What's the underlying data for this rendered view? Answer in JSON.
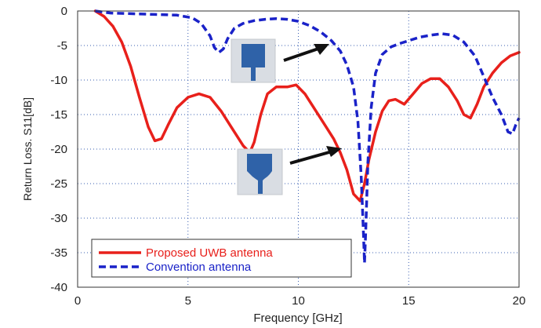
{
  "chart_data": {
    "type": "line",
    "title": "",
    "xlabel": "Frequency [GHz]",
    "ylabel": "Return Loss. S11[dB]",
    "xlim": [
      0,
      20
    ],
    "ylim": [
      -40,
      0
    ],
    "xticks": [
      "0",
      "5",
      "10",
      "15",
      "20"
    ],
    "yticks": [
      "0",
      "-5",
      "-10",
      "-15",
      "-20",
      "-25",
      "-30",
      "-35",
      "-40"
    ],
    "grid": true,
    "legend_position": "bottom-left",
    "series": [
      {
        "name": "Proposed UWB antenna",
        "color": "#e8201b",
        "style": "solid",
        "x": [
          0.8,
          1.2,
          1.6,
          2.0,
          2.4,
          2.8,
          3.2,
          3.5,
          3.8,
          4.1,
          4.5,
          5.0,
          5.5,
          6.0,
          6.5,
          7.0,
          7.5,
          7.8,
          8.0,
          8.3,
          8.6,
          9.0,
          9.5,
          9.9,
          10.3,
          10.8,
          11.2,
          11.6,
          11.9,
          12.2,
          12.5,
          12.8,
          13.0,
          13.2,
          13.5,
          13.8,
          14.1,
          14.4,
          14.8,
          15.2,
          15.6,
          16.0,
          16.4,
          16.8,
          17.2,
          17.5,
          17.8,
          18.1,
          18.4,
          18.8,
          19.2,
          19.6,
          20.0
        ],
        "y": [
          0.0,
          -0.8,
          -2.2,
          -4.5,
          -8.0,
          -12.5,
          -16.8,
          -18.8,
          -18.5,
          -16.5,
          -14.0,
          -12.5,
          -12.0,
          -12.5,
          -14.5,
          -17.0,
          -19.5,
          -20.5,
          -19.0,
          -15.0,
          -12.0,
          -11.0,
          -11.0,
          -10.7,
          -12.0,
          -14.5,
          -16.5,
          -18.5,
          -20.5,
          -23.0,
          -26.5,
          -27.5,
          -25.0,
          -21.5,
          -17.5,
          -14.5,
          -13.0,
          -12.8,
          -13.5,
          -12.0,
          -10.5,
          -9.8,
          -9.8,
          -11.0,
          -13.0,
          -15.0,
          -15.5,
          -13.5,
          -11.0,
          -9.0,
          -7.5,
          -6.5,
          -6.0
        ]
      },
      {
        "name": "Convention antenna",
        "color": "#1a22c8",
        "style": "dashed",
        "x": [
          0.8,
          1.5,
          2.5,
          3.5,
          4.5,
          5.2,
          5.6,
          6.0,
          6.2,
          6.4,
          6.6,
          6.8,
          7.1,
          7.5,
          8.0,
          8.5,
          9.0,
          9.5,
          10.0,
          10.5,
          11.0,
          11.5,
          11.9,
          12.2,
          12.5,
          12.7,
          12.85,
          12.95,
          13.0,
          13.05,
          13.15,
          13.3,
          13.5,
          13.8,
          14.2,
          14.6,
          15.0,
          15.5,
          16.0,
          16.5,
          17.0,
          17.5,
          18.0,
          18.4,
          18.8,
          19.2,
          19.5,
          19.7,
          19.85,
          20.0
        ],
        "y": [
          0.0,
          -0.3,
          -0.4,
          -0.5,
          -0.6,
          -1.0,
          -1.8,
          -3.6,
          -5.3,
          -6.0,
          -5.5,
          -4.0,
          -2.5,
          -1.8,
          -1.4,
          -1.2,
          -1.1,
          -1.2,
          -1.5,
          -2.1,
          -3.0,
          -4.3,
          -5.8,
          -7.8,
          -11.0,
          -16.0,
          -24.0,
          -32.0,
          -36.5,
          -32.0,
          -22.0,
          -14.0,
          -9.0,
          -6.3,
          -5.2,
          -4.7,
          -4.3,
          -3.8,
          -3.5,
          -3.3,
          -3.5,
          -4.5,
          -6.5,
          -9.5,
          -12.5,
          -15.0,
          -17.5,
          -17.8,
          -16.5,
          -15.5
        ]
      }
    ],
    "annotations": [
      "conventional-antenna-inset",
      "proposed-antenna-inset"
    ]
  }
}
